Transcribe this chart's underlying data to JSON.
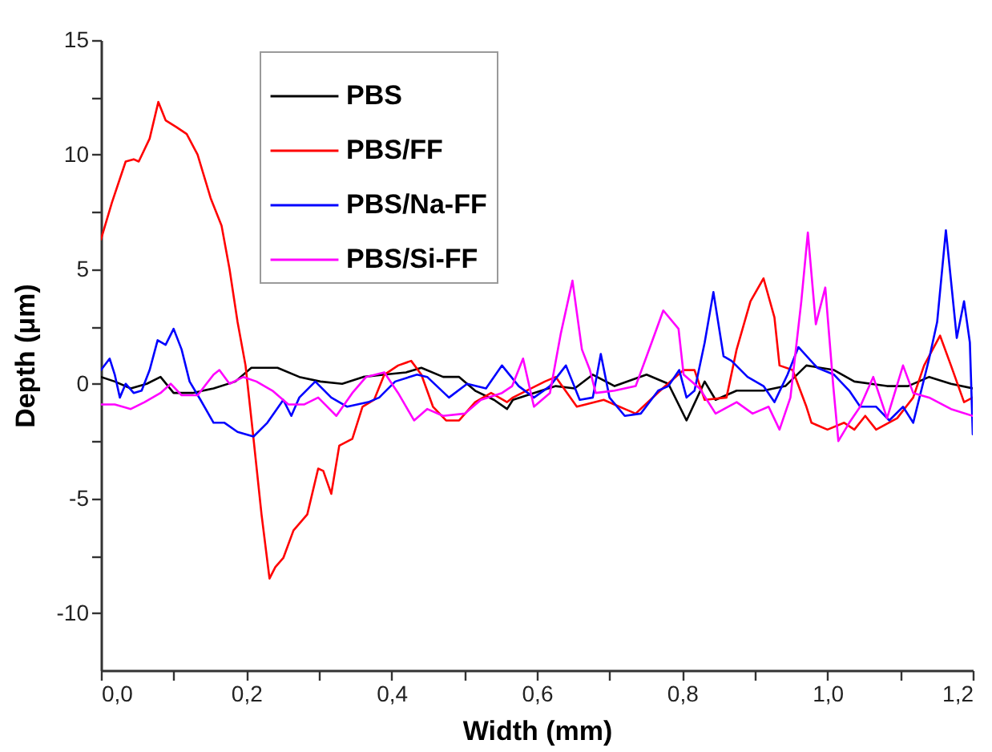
{
  "chart_data": {
    "type": "line",
    "xlabel": "Width (mm)",
    "ylabel": "Depth (μm)",
    "xlim": [
      0,
      1.2
    ],
    "ylim": [
      -12.5,
      15
    ],
    "xticks": [
      {
        "value": 0,
        "label": "0,0"
      },
      {
        "value": 0.1,
        "label": null
      },
      {
        "value": 0.2,
        "label": "0,2"
      },
      {
        "value": 0.3,
        "label": null
      },
      {
        "value": 0.4,
        "label": "0,4"
      },
      {
        "value": 0.5,
        "label": null
      },
      {
        "value": 0.6,
        "label": "0,6"
      },
      {
        "value": 0.7,
        "label": null
      },
      {
        "value": 0.8,
        "label": "0,8"
      },
      {
        "value": 0.9,
        "label": null
      },
      {
        "value": 1.0,
        "label": "1,0"
      },
      {
        "value": 1.1,
        "label": null
      },
      {
        "value": 1.2,
        "label": "1,2"
      }
    ],
    "yticks": [
      -10,
      {
        "value": -7.5,
        "label": null
      },
      -5,
      {
        "value": -2.5,
        "label": null
      },
      0,
      {
        "value": 2.5,
        "label": null
      },
      5,
      {
        "value": 7.5,
        "label": null
      },
      10,
      {
        "value": 12.5,
        "label": null
      },
      15
    ],
    "legend": "top left",
    "marker": "none",
    "line_style": "solid",
    "series": [
      {
        "name": "PBS",
        "color": "#000000",
        "x": [
          0,
          0.019,
          0.041,
          0.063,
          0.082,
          0.1,
          0.126,
          0.155,
          0.185,
          0.207,
          0.243,
          0.273,
          0.302,
          0.332,
          0.361,
          0.39,
          0.42,
          0.441,
          0.471,
          0.493,
          0.515,
          0.541,
          0.559,
          0.567,
          0.596,
          0.626,
          0.652,
          0.677,
          0.707,
          0.751,
          0.781,
          0.806,
          0.831,
          0.846,
          0.875,
          0.912,
          0.942,
          0.971,
          1.009,
          1.037,
          1.082,
          1.111,
          1.14,
          1.17,
          1.2
        ],
        "values": [
          0.3,
          0.1,
          -0.2,
          0,
          0.3,
          -0.4,
          -0.4,
          -0.2,
          0.1,
          0.7,
          0.7,
          0.3,
          0.1,
          0,
          0.3,
          0.4,
          0.5,
          0.7,
          0.3,
          0.3,
          -0.3,
          -0.7,
          -1.1,
          -0.7,
          -0.4,
          -0.1,
          -0.2,
          0.4,
          -0.1,
          0.4,
          0,
          -1.6,
          0.1,
          -0.7,
          -0.3,
          -0.3,
          -0.1,
          0.8,
          0.6,
          0.1,
          -0.1,
          -0.1,
          0.3,
          0,
          -0.2
        ]
      },
      {
        "name": "PBS/FF",
        "color": "#ff0000",
        "x": [
          0,
          0.015,
          0.034,
          0.045,
          0.052,
          0.067,
          0.079,
          0.089,
          0.104,
          0.118,
          0.133,
          0.151,
          0.166,
          0.177,
          0.188,
          0.199,
          0.21,
          0.221,
          0.232,
          0.24,
          0.251,
          0.265,
          0.284,
          0.299,
          0.306,
          0.317,
          0.328,
          0.346,
          0.36,
          0.376,
          0.39,
          0.409,
          0.427,
          0.441,
          0.457,
          0.475,
          0.493,
          0.515,
          0.537,
          0.559,
          0.567,
          0.611,
          0.626,
          0.655,
          0.692,
          0.721,
          0.736,
          0.773,
          0.802,
          0.817,
          0.831,
          0.861,
          0.875,
          0.894,
          0.912,
          0.927,
          0.934,
          0.952,
          0.971,
          0.978,
          1.0,
          1.023,
          1.037,
          1.052,
          1.067,
          1.096,
          1.118,
          1.133,
          1.155,
          1.17,
          1.188,
          1.2
        ],
        "values": [
          6.3,
          7.9,
          9.7,
          9.8,
          9.7,
          10.7,
          12.3,
          11.5,
          11.2,
          10.9,
          10,
          8.1,
          6.9,
          5,
          2.7,
          0.8,
          -2.4,
          -5.7,
          -8.5,
          -8,
          -7.6,
          -6.4,
          -5.7,
          -3.7,
          -3.8,
          -4.8,
          -2.7,
          -2.4,
          -1,
          -0.7,
          0.4,
          0.8,
          1,
          0.4,
          -1,
          -1.6,
          -1.6,
          -0.8,
          -0.4,
          -0.8,
          -0.6,
          0.1,
          0.3,
          -1,
          -0.7,
          -1.1,
          -1.3,
          -0.2,
          0.6,
          0.6,
          -0.7,
          -0.6,
          1.5,
          3.6,
          4.6,
          2.9,
          0.8,
          0.6,
          -1,
          -1.7,
          -2,
          -1.7,
          -2,
          -1.4,
          -2,
          -1.5,
          -0.6,
          0.8,
          2.1,
          0.8,
          -0.8,
          -0.6
        ]
      },
      {
        "name": "PBS/Na-FF",
        "color": "#0000ff",
        "x": [
          0,
          0.012,
          0.019,
          0.026,
          0.034,
          0.045,
          0.056,
          0.067,
          0.078,
          0.089,
          0.1,
          0.111,
          0.122,
          0.137,
          0.155,
          0.17,
          0.188,
          0.21,
          0.229,
          0.251,
          0.262,
          0.273,
          0.295,
          0.317,
          0.339,
          0.368,
          0.383,
          0.405,
          0.435,
          0.449,
          0.479,
          0.504,
          0.53,
          0.552,
          0.575,
          0.596,
          0.618,
          0.64,
          0.659,
          0.677,
          0.688,
          0.7,
          0.721,
          0.743,
          0.767,
          0.781,
          0.796,
          0.806,
          0.817,
          0.831,
          0.843,
          0.857,
          0.868,
          0.89,
          0.912,
          0.927,
          0.945,
          0.96,
          0.986,
          1.009,
          1.03,
          1.045,
          1.067,
          1.085,
          1.104,
          1.118,
          1.14,
          1.151,
          1.163,
          1.178,
          1.188,
          1.196,
          1.2
        ],
        "values": [
          0.6,
          1.1,
          0.4,
          -0.6,
          0,
          -0.4,
          -0.3,
          0.6,
          1.9,
          1.7,
          2.4,
          1.5,
          0.1,
          -0.7,
          -1.7,
          -1.7,
          -2.1,
          -2.3,
          -1.7,
          -0.7,
          -1.4,
          -0.6,
          0.1,
          -0.6,
          -1,
          -0.8,
          -0.6,
          0.1,
          0.4,
          0.3,
          -0.6,
          0,
          -0.2,
          0.8,
          -0.1,
          -0.6,
          -0.1,
          0.8,
          -0.7,
          -0.6,
          1.3,
          -0.6,
          -1.4,
          -1.3,
          -0.3,
          -0.1,
          0.6,
          -0.6,
          -0.3,
          1.8,
          4,
          1.2,
          1,
          0.3,
          -0.1,
          -0.8,
          0.4,
          1.6,
          0.7,
          0.4,
          -0.3,
          -1,
          -1,
          -1.6,
          -1,
          -1.7,
          1.1,
          2.7,
          6.7,
          2,
          3.6,
          1.8,
          -2.2
        ]
      },
      {
        "name": "PBS/Si-FF",
        "color": "#ff00ff",
        "x": [
          0,
          0.019,
          0.041,
          0.06,
          0.082,
          0.096,
          0.111,
          0.133,
          0.155,
          0.163,
          0.177,
          0.196,
          0.214,
          0.236,
          0.258,
          0.28,
          0.299,
          0.324,
          0.346,
          0.365,
          0.39,
          0.409,
          0.431,
          0.449,
          0.471,
          0.501,
          0.523,
          0.552,
          0.566,
          0.581,
          0.596,
          0.618,
          0.633,
          0.649,
          0.662,
          0.673,
          0.681,
          0.707,
          0.736,
          0.758,
          0.774,
          0.795,
          0.802,
          0.824,
          0.846,
          0.875,
          0.897,
          0.919,
          0.934,
          0.949,
          0.964,
          0.973,
          0.984,
          0.997,
          1.008,
          1.015,
          1.03,
          1.045,
          1.063,
          1.082,
          1.104,
          1.118,
          1.14,
          1.17,
          1.2
        ],
        "values": [
          -0.9,
          -0.9,
          -1.1,
          -0.8,
          -0.4,
          0,
          -0.5,
          -0.5,
          0.4,
          0.6,
          0,
          0.3,
          0.1,
          -0.3,
          -0.9,
          -0.9,
          -0.6,
          -1.4,
          -0.4,
          0.3,
          0.5,
          -0.4,
          -1.6,
          -1.1,
          -1.4,
          -1.3,
          -0.7,
          -0.4,
          -0.1,
          1.1,
          -1,
          -0.4,
          2.2,
          4.5,
          1.5,
          0.6,
          -0.4,
          -0.3,
          -0.1,
          1.8,
          3.2,
          2.4,
          0.4,
          -0.2,
          -1.3,
          -0.8,
          -1.3,
          -1,
          -2,
          -0.6,
          3.6,
          6.6,
          2.6,
          4.2,
          -0.1,
          -2.5,
          -1.7,
          -1,
          0.3,
          -1.5,
          0.8,
          -0.4,
          -0.6,
          -1.1,
          -1.4
        ]
      }
    ]
  }
}
